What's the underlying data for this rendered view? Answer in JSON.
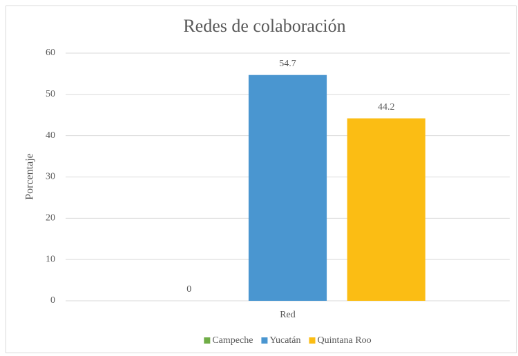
{
  "chart_data": {
    "type": "bar",
    "title": "Redes de colaboración",
    "y_label": "Porcentaje",
    "categories": [
      "Red"
    ],
    "series": [
      {
        "name": "Campeche",
        "color": "#70ad47",
        "values": [
          0
        ]
      },
      {
        "name": "Yucatán",
        "color": "#4a96d0",
        "values": [
          54.7
        ]
      },
      {
        "name": "Quintana Roo",
        "color": "#fbbd14",
        "values": [
          44.2
        ]
      }
    ],
    "ylim": [
      0,
      60
    ],
    "yticks": [
      0,
      10,
      20,
      30,
      40,
      50,
      60
    ],
    "grid": true,
    "legend": "bottom"
  }
}
